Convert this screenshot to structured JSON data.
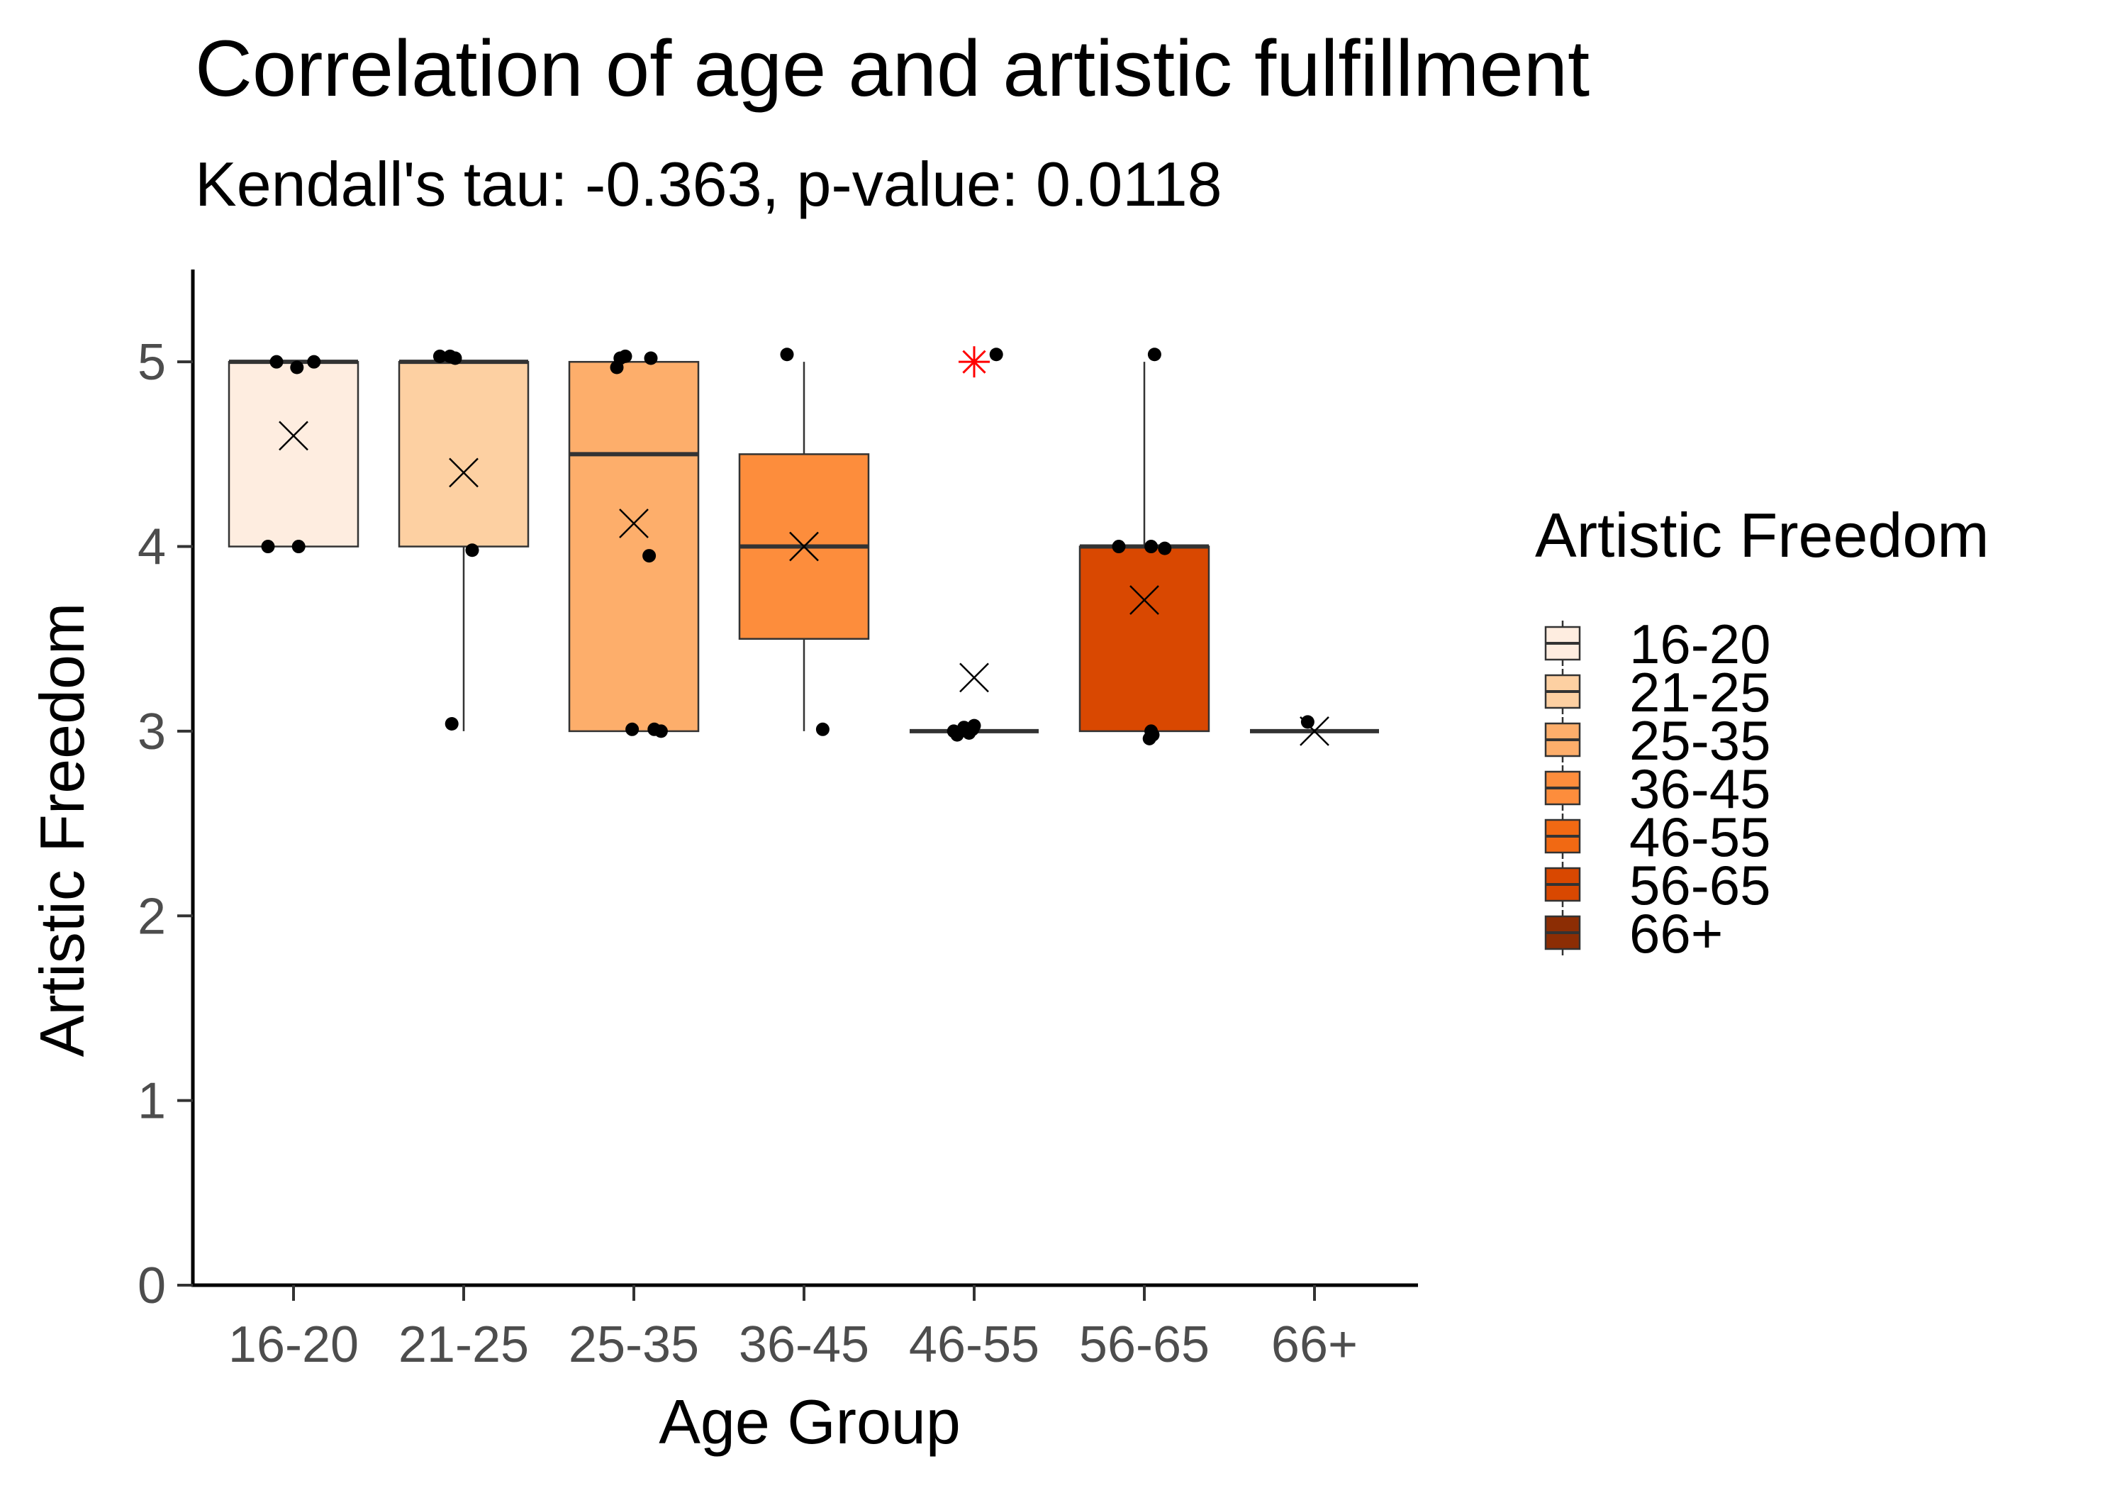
{
  "chart_data": {
    "type": "box",
    "title": "Correlation of age and artistic fulfillment",
    "subtitle": "Kendall's tau: -0.363, p-value: 0.0118",
    "xlabel": "Age Group",
    "ylabel": "Artistic Freedom",
    "ylim": [
      0,
      5.5
    ],
    "yticks": [
      0,
      1,
      2,
      3,
      4,
      5
    ],
    "grid": false,
    "legend": {
      "title": "Artistic Freedom",
      "placement": "right"
    },
    "categories": [
      "16-20",
      "21-25",
      "25-35",
      "36-45",
      "46-55",
      "56-65",
      "66+"
    ],
    "colors": [
      "#feede0",
      "#fdd0a2",
      "#fdae6b",
      "#fd8d3c",
      "#f16913",
      "#d94801",
      "#8c2d04"
    ],
    "boxes": [
      {
        "q1": 4,
        "median": 5,
        "q3": 5,
        "whisker_low": 4,
        "whisker_high": 5,
        "mean": 4.6
      },
      {
        "q1": 4,
        "median": 5,
        "q3": 5,
        "whisker_low": 3,
        "whisker_high": 5,
        "mean": 4.4
      },
      {
        "q1": 3,
        "median": 4.5,
        "q3": 5,
        "whisker_low": 3,
        "whisker_high": 5,
        "mean": 4.125
      },
      {
        "q1": 3.5,
        "median": 4,
        "q3": 4.5,
        "whisker_low": 3,
        "whisker_high": 5,
        "mean": 4.0
      },
      {
        "q1": 3,
        "median": 3,
        "q3": 3,
        "whisker_low": 3,
        "whisker_high": 3,
        "mean": 3.29
      },
      {
        "q1": 3,
        "median": 4,
        "q3": 4,
        "whisker_low": 3,
        "whisker_high": 5,
        "mean": 3.71
      },
      {
        "q1": 3,
        "median": 3,
        "q3": 3,
        "whisker_low": 3,
        "whisker_high": 3,
        "mean": 3.0
      }
    ],
    "outliers": [
      {
        "category": "46-55",
        "y": 5,
        "color": "#ff0000"
      }
    ],
    "points": [
      [
        {
          "y": 5,
          "j": -0.1
        },
        {
          "y": 4.97,
          "j": 0.02
        },
        {
          "y": 5,
          "j": 0.12
        },
        {
          "y": 4,
          "j": -0.15
        },
        {
          "y": 4,
          "j": 0.03
        }
      ],
      [
        {
          "y": 5.03,
          "j": -0.14
        },
        {
          "y": 5.03,
          "j": -0.08
        },
        {
          "y": 5.02,
          "j": -0.05
        },
        {
          "y": 3.98,
          "j": 0.05
        },
        {
          "y": 3.04,
          "j": -0.07
        }
      ],
      [
        {
          "y": 5.02,
          "j": -0.08
        },
        {
          "y": 5.03,
          "j": -0.05
        },
        {
          "y": 4.97,
          "j": -0.1
        },
        {
          "y": 5.02,
          "j": 0.1
        },
        {
          "y": 3.95,
          "j": 0.09
        },
        {
          "y": 3.01,
          "j": -0.01
        },
        {
          "y": 3.01,
          "j": 0.12
        },
        {
          "y": 3.0,
          "j": 0.16
        }
      ],
      [
        {
          "y": 5.04,
          "j": -0.1
        },
        {
          "y": 3.01,
          "j": 0.11
        }
      ],
      [
        {
          "y": 5.04,
          "j": 0.13
        },
        {
          "y": 3.0,
          "j": -0.12
        },
        {
          "y": 2.98,
          "j": -0.1
        },
        {
          "y": 3.02,
          "j": -0.06
        },
        {
          "y": 2.99,
          "j": -0.03
        },
        {
          "y": 3.01,
          "j": -0.01
        },
        {
          "y": 3.03,
          "j": 0.0
        }
      ],
      [
        {
          "y": 5.04,
          "j": 0.06
        },
        {
          "y": 4.0,
          "j": -0.15
        },
        {
          "y": 4.0,
          "j": 0.04
        },
        {
          "y": 3.99,
          "j": 0.12
        },
        {
          "y": 3.0,
          "j": 0.04
        },
        {
          "y": 2.96,
          "j": 0.03
        },
        {
          "y": 2.98,
          "j": 0.05
        }
      ],
      [
        {
          "y": 3.05,
          "j": -0.04
        }
      ]
    ]
  }
}
